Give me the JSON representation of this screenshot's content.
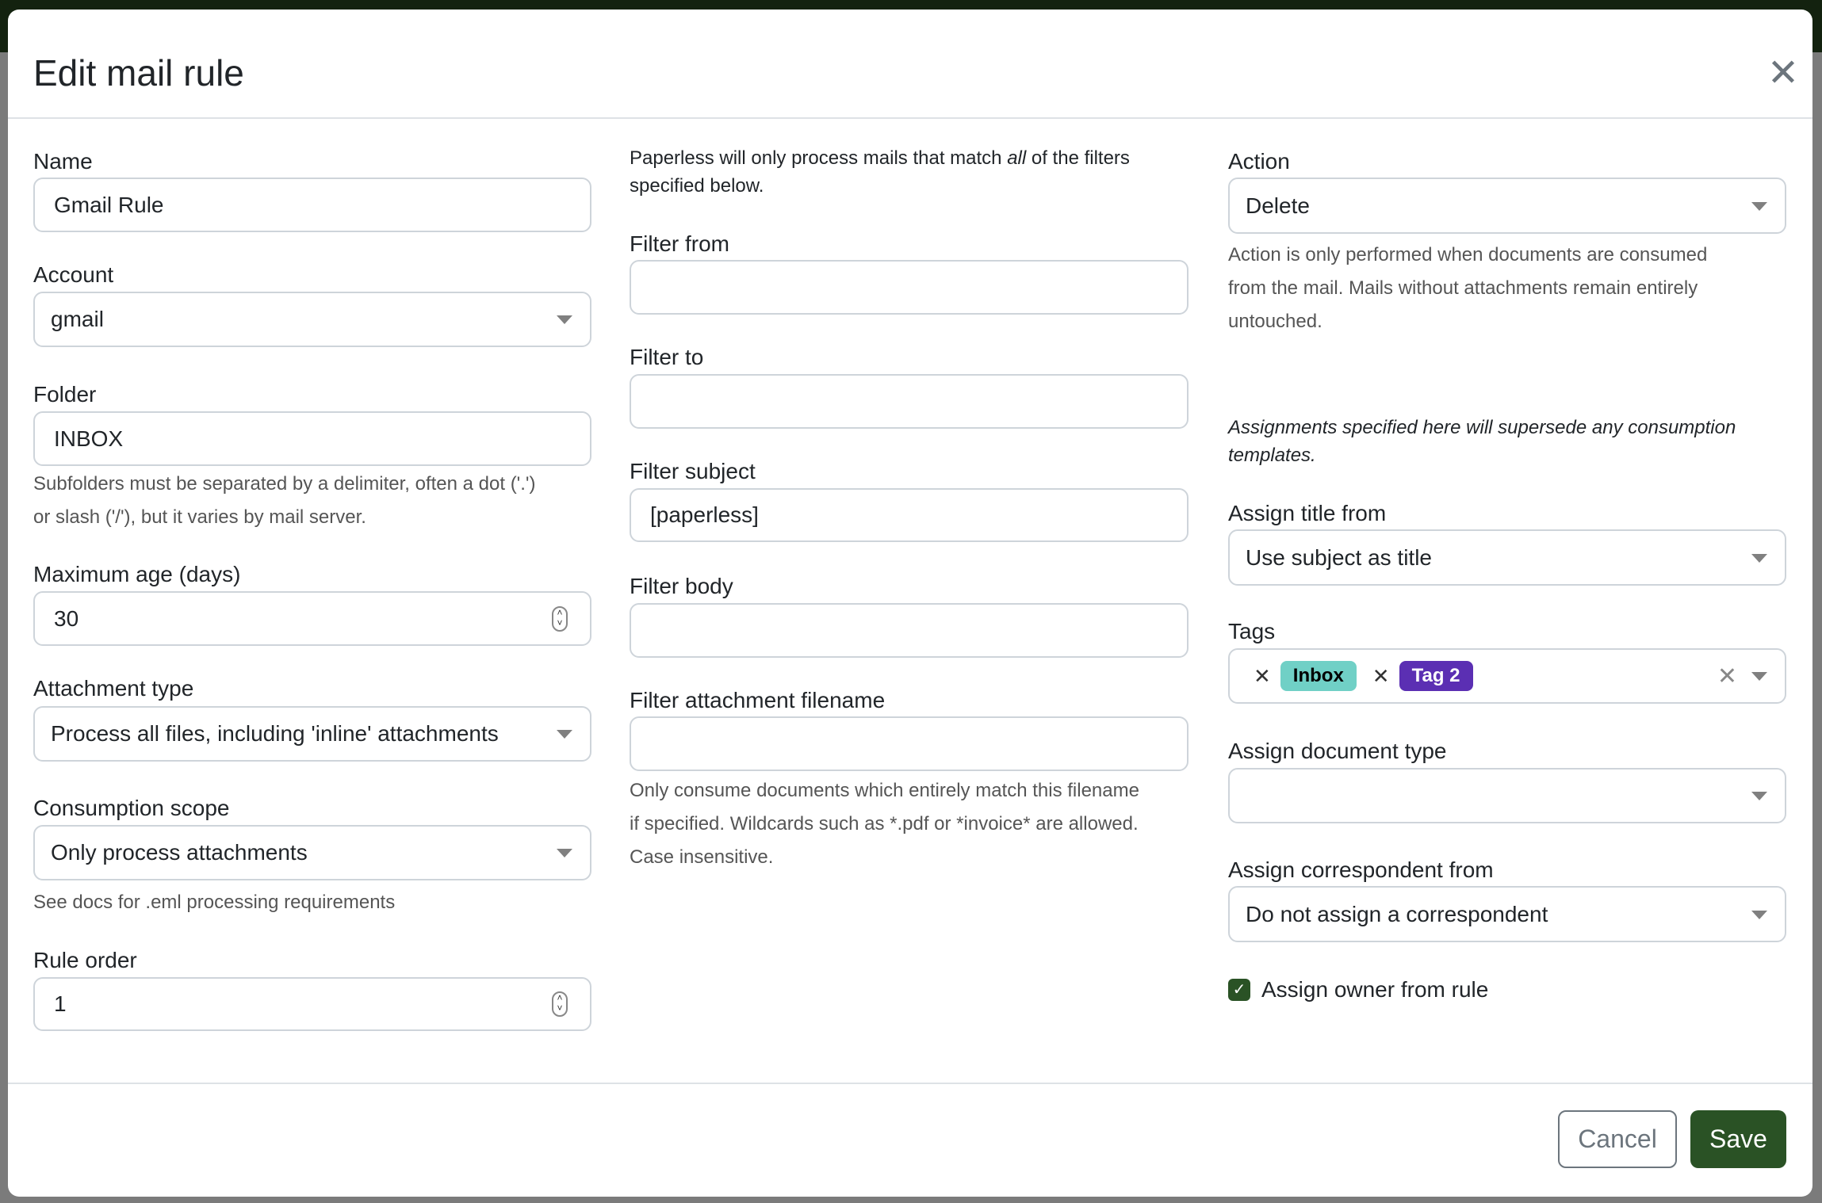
{
  "dialog": {
    "title": "Edit mail rule",
    "close_icon": "close-icon"
  },
  "col1": {
    "name": {
      "label": "Name",
      "value": "Gmail Rule"
    },
    "account": {
      "label": "Account",
      "value": "gmail"
    },
    "folder": {
      "label": "Folder",
      "value": "INBOX",
      "help": [
        "Subfolders must be separated by a delimiter, often a dot ('.')",
        "or slash ('/'), but it varies by mail server."
      ]
    },
    "max_age": {
      "label": "Maximum age (days)",
      "value": "30"
    },
    "attachment_type": {
      "label": "Attachment type",
      "value": "Process all files, including 'inline' attachments"
    },
    "consumption_scope": {
      "label": "Consumption scope",
      "value": "Only process attachments",
      "help": "See docs for .eml processing requirements"
    },
    "rule_order": {
      "label": "Rule order",
      "value": "1"
    }
  },
  "col2": {
    "intro_pre": "Paperless will only process mails that match ",
    "intro_em": "all",
    "intro_post": " of the filters",
    "intro_line2": "specified below.",
    "filter_from": {
      "label": "Filter from",
      "value": ""
    },
    "filter_to": {
      "label": "Filter to",
      "value": ""
    },
    "filter_subject": {
      "label": "Filter subject",
      "value": "[paperless]"
    },
    "filter_body": {
      "label": "Filter body",
      "value": ""
    },
    "filter_attachment": {
      "label": "Filter attachment filename",
      "value": "",
      "help": [
        "Only consume documents which entirely match this filename",
        "if specified. Wildcards such as *.pdf or *invoice* are allowed.",
        "Case insensitive."
      ]
    }
  },
  "col3": {
    "action": {
      "label": "Action",
      "value": "Delete",
      "help": [
        "Action is only performed when documents are consumed",
        "from the mail. Mails without attachments remain entirely",
        "untouched."
      ]
    },
    "assignments_note": [
      "Assignments specified here will supersede any consumption",
      "templates."
    ],
    "assign_title": {
      "label": "Assign title from",
      "value": "Use subject as title"
    },
    "tags": {
      "label": "Tags",
      "items": [
        {
          "name": "Inbox",
          "color": "#70d0c6",
          "text_color": "#000000"
        },
        {
          "name": "Tag 2",
          "color": "#5b2fb3",
          "text_color": "#ffffff"
        }
      ]
    },
    "doc_type": {
      "label": "Assign document type",
      "value": ""
    },
    "correspondent": {
      "label": "Assign correspondent from",
      "value": "Do not assign a correspondent"
    },
    "owner": {
      "label": "Assign owner from rule",
      "checked": true
    }
  },
  "footer": {
    "cancel": "Cancel",
    "save": "Save"
  },
  "colors": {
    "primary": "#2a5225",
    "overlay_bar": "#13220f"
  }
}
